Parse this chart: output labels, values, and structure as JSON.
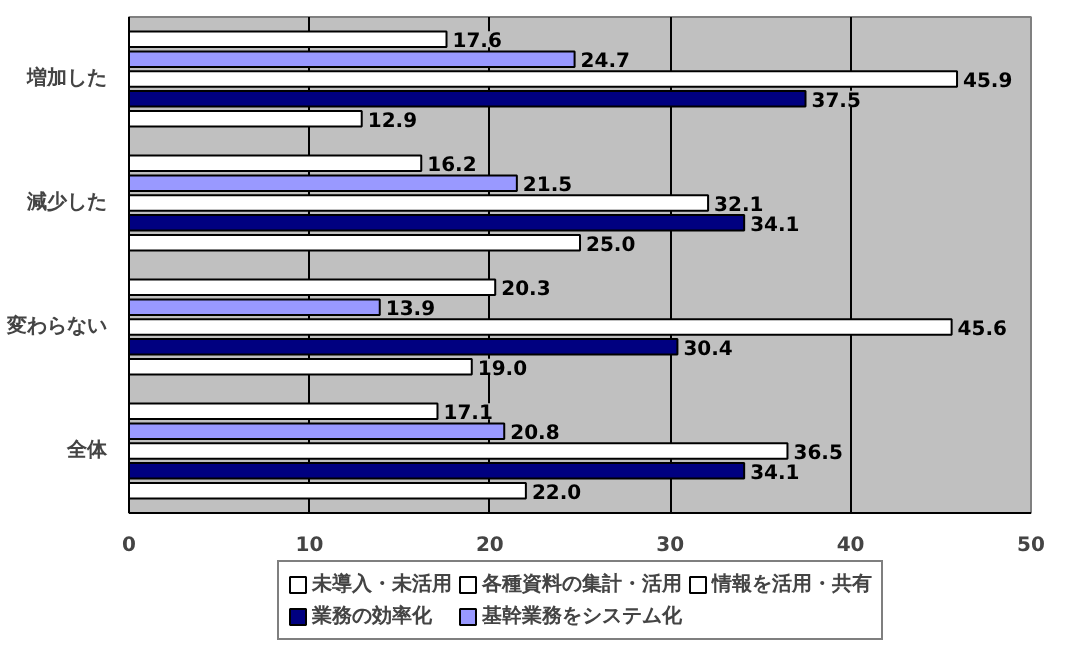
{
  "chart_data": {
    "type": "bar",
    "orientation": "horizontal",
    "categories": [
      "増加した",
      "減少した",
      "変わらない",
      "全体"
    ],
    "series": [
      {
        "name": "未導入・未活用",
        "color": "#ffffff",
        "values": [
          12.9,
          25.0,
          19.0,
          22.0
        ],
        "value_labels": [
          "12.9",
          "25.0",
          "19.0",
          "22.0"
        ]
      },
      {
        "name": "業務の効率化",
        "color": "#000080",
        "values": [
          37.5,
          34.1,
          30.4,
          34.1
        ],
        "value_labels": [
          "37.5",
          "34.1",
          "30.4",
          "34.1"
        ]
      },
      {
        "name": "各種資料の集計・活用",
        "color": "#ffffff",
        "values": [
          45.9,
          32.1,
          45.6,
          36.5
        ],
        "value_labels": [
          "45.9",
          "32.1",
          "45.6",
          "36.5"
        ]
      },
      {
        "name": "基幹業務をシステム化",
        "color": "#9999ff",
        "values": [
          24.7,
          21.5,
          13.9,
          20.8
        ],
        "value_labels": [
          "24.7",
          "21.5",
          "13.9",
          "20.8"
        ]
      },
      {
        "name": "情報を活用・共有",
        "color": "#ffffff",
        "values": [
          17.6,
          16.2,
          20.3,
          17.1
        ],
        "value_labels": [
          "17.6",
          "16.2",
          "20.3",
          "17.1"
        ]
      }
    ],
    "xlim": [
      0,
      50
    ],
    "xticks": [
      0,
      10,
      20,
      30,
      40,
      50
    ],
    "grid": "x",
    "legend": "bottom"
  }
}
